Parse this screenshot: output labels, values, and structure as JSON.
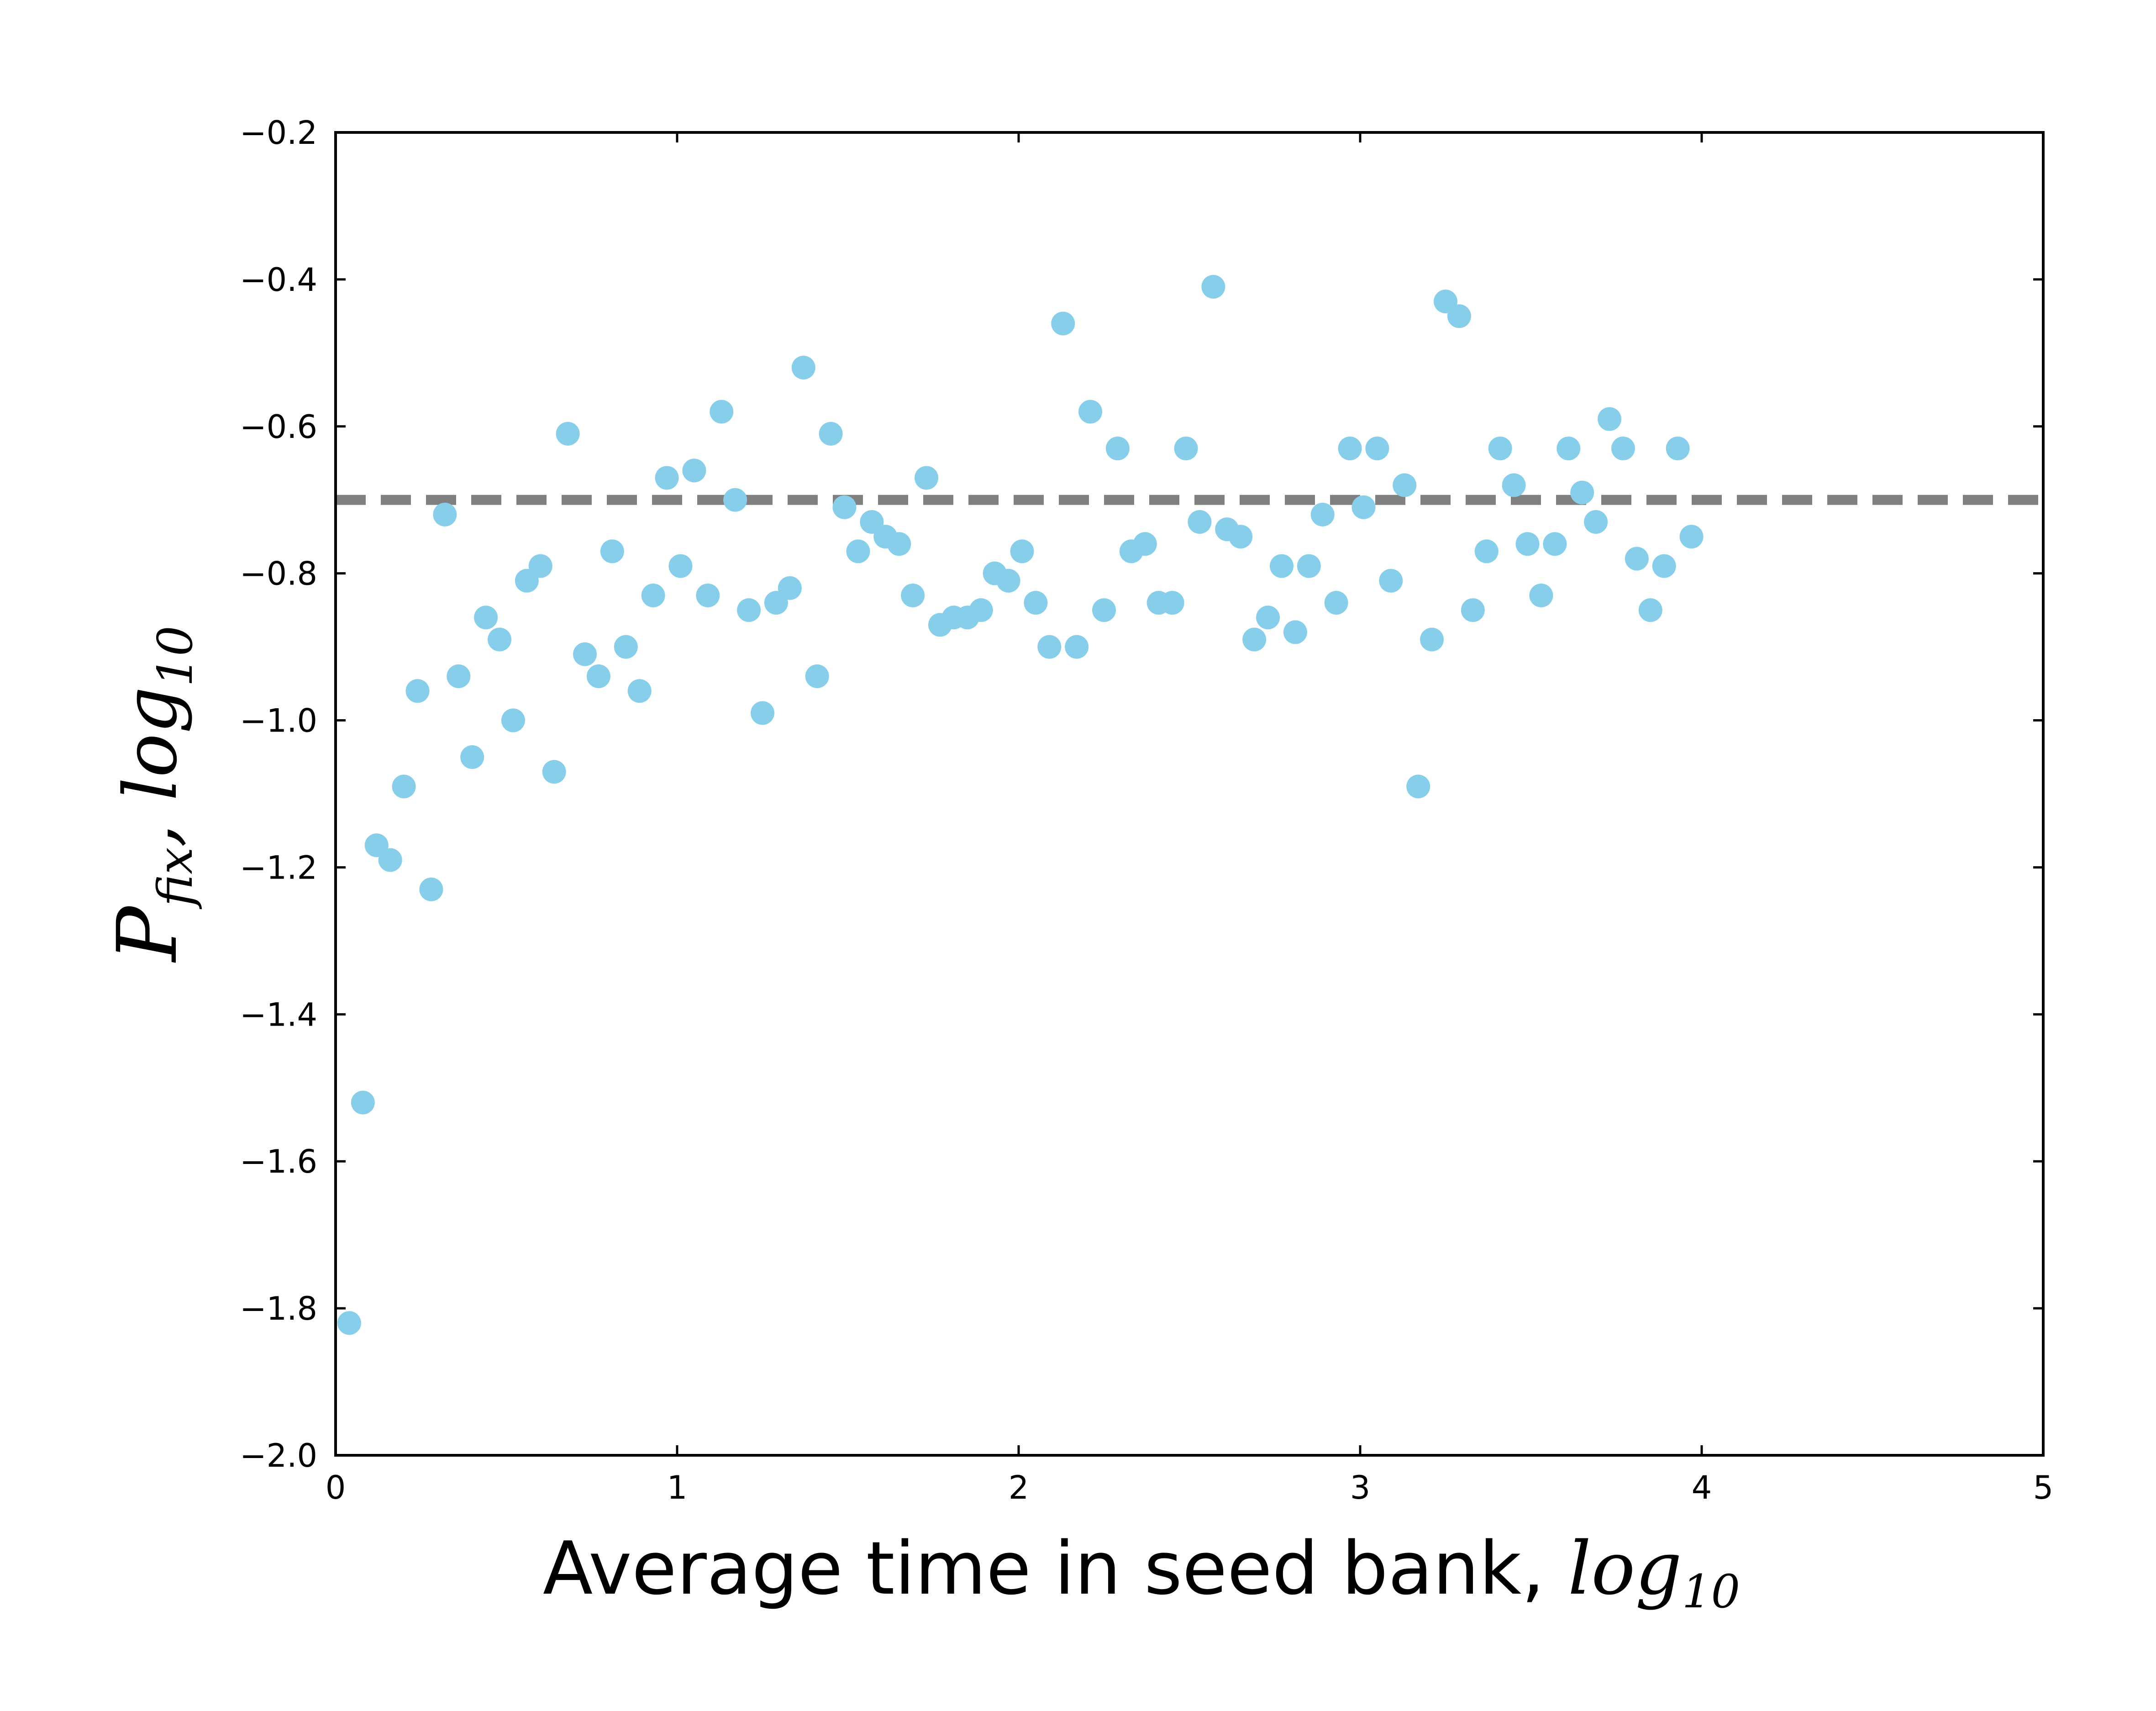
{
  "chart_data": {
    "type": "scatter",
    "title": "",
    "xlabel": "Average time in seed bank, ",
    "xlabel_math": "log",
    "xlabel_math_sub": "10",
    "ylabel_main": "P",
    "ylabel_sub": "fix",
    "ylabel_sep": ", ",
    "ylabel_math": "log",
    "ylabel_math_sub": "10",
    "xlim": [
      0,
      5
    ],
    "ylim": [
      -2.0,
      -0.2
    ],
    "xticks": [
      0,
      1,
      2,
      3,
      4,
      5
    ],
    "xtick_labels": [
      "0",
      "1",
      "2",
      "3",
      "4",
      "5"
    ],
    "yticks": [
      -2.0,
      -1.8,
      -1.6,
      -1.4,
      -1.2,
      -1.0,
      -0.8,
      -0.6,
      -0.4,
      -0.2
    ],
    "ytick_labels": [
      "−2.0",
      "−1.8",
      "−1.6",
      "−1.4",
      "−1.2",
      "−1.0",
      "−0.8",
      "−0.6",
      "−0.4",
      "−0.2"
    ],
    "grid": false,
    "reference_line": {
      "y": -0.7,
      "style": "dashed",
      "color": "#808080"
    },
    "marker_color": "#87ceeb",
    "points": [
      [
        0.04,
        -1.82
      ],
      [
        0.08,
        -1.52
      ],
      [
        0.12,
        -1.17
      ],
      [
        0.16,
        -1.19
      ],
      [
        0.2,
        -1.09
      ],
      [
        0.24,
        -0.96
      ],
      [
        0.28,
        -1.23
      ],
      [
        0.32,
        -0.72
      ],
      [
        0.36,
        -0.94
      ],
      [
        0.4,
        -1.05
      ],
      [
        0.44,
        -0.86
      ],
      [
        0.48,
        -0.89
      ],
      [
        0.52,
        -1.0
      ],
      [
        0.56,
        -0.81
      ],
      [
        0.6,
        -0.79
      ],
      [
        0.64,
        -1.07
      ],
      [
        0.68,
        -0.61
      ],
      [
        0.73,
        -0.91
      ],
      [
        0.77,
        -0.94
      ],
      [
        0.81,
        -0.77
      ],
      [
        0.85,
        -0.9
      ],
      [
        0.89,
        -0.96
      ],
      [
        0.93,
        -0.83
      ],
      [
        0.97,
        -0.67
      ],
      [
        1.01,
        -0.79
      ],
      [
        1.05,
        -0.66
      ],
      [
        1.09,
        -0.83
      ],
      [
        1.13,
        -0.58
      ],
      [
        1.17,
        -0.7
      ],
      [
        1.21,
        -0.85
      ],
      [
        1.25,
        -0.99
      ],
      [
        1.29,
        -0.84
      ],
      [
        1.33,
        -0.82
      ],
      [
        1.37,
        -0.52
      ],
      [
        1.41,
        -0.94
      ],
      [
        1.45,
        -0.61
      ],
      [
        1.49,
        -0.71
      ],
      [
        1.53,
        -0.77
      ],
      [
        1.57,
        -0.73
      ],
      [
        1.61,
        -0.75
      ],
      [
        1.65,
        -0.76
      ],
      [
        1.69,
        -0.83
      ],
      [
        1.73,
        -0.67
      ],
      [
        1.77,
        -0.87
      ],
      [
        1.81,
        -0.86
      ],
      [
        1.85,
        -0.86
      ],
      [
        1.89,
        -0.85
      ],
      [
        1.93,
        -0.8
      ],
      [
        1.97,
        -0.81
      ],
      [
        2.01,
        -0.77
      ],
      [
        2.05,
        -0.84
      ],
      [
        2.09,
        -0.9
      ],
      [
        2.13,
        -0.46
      ],
      [
        2.17,
        -0.9
      ],
      [
        2.21,
        -0.58
      ],
      [
        2.25,
        -0.85
      ],
      [
        2.29,
        -0.63
      ],
      [
        2.33,
        -0.77
      ],
      [
        2.37,
        -0.76
      ],
      [
        2.41,
        -0.84
      ],
      [
        2.45,
        -0.84
      ],
      [
        2.49,
        -0.63
      ],
      [
        2.53,
        -0.73
      ],
      [
        2.57,
        -0.41
      ],
      [
        2.61,
        -0.74
      ],
      [
        2.65,
        -0.75
      ],
      [
        2.69,
        -0.89
      ],
      [
        2.73,
        -0.86
      ],
      [
        2.77,
        -0.79
      ],
      [
        2.81,
        -0.88
      ],
      [
        2.85,
        -0.79
      ],
      [
        2.89,
        -0.72
      ],
      [
        2.93,
        -0.84
      ],
      [
        2.97,
        -0.63
      ],
      [
        3.01,
        -0.71
      ],
      [
        3.05,
        -0.63
      ],
      [
        3.09,
        -0.81
      ],
      [
        3.13,
        -0.68
      ],
      [
        3.17,
        -1.09
      ],
      [
        3.21,
        -0.89
      ],
      [
        3.25,
        -0.43
      ],
      [
        3.29,
        -0.45
      ],
      [
        3.33,
        -0.85
      ],
      [
        3.37,
        -0.77
      ],
      [
        3.41,
        -0.63
      ],
      [
        3.45,
        -0.68
      ],
      [
        3.49,
        -0.76
      ],
      [
        3.53,
        -0.83
      ],
      [
        3.57,
        -0.76
      ],
      [
        3.61,
        -0.63
      ],
      [
        3.65,
        -0.69
      ],
      [
        3.69,
        -0.73
      ],
      [
        3.73,
        -0.59
      ],
      [
        3.77,
        -0.63
      ],
      [
        3.81,
        -0.78
      ],
      [
        3.85,
        -0.85
      ],
      [
        3.89,
        -0.79
      ],
      [
        3.93,
        -0.63
      ],
      [
        3.97,
        -0.75
      ]
    ]
  }
}
